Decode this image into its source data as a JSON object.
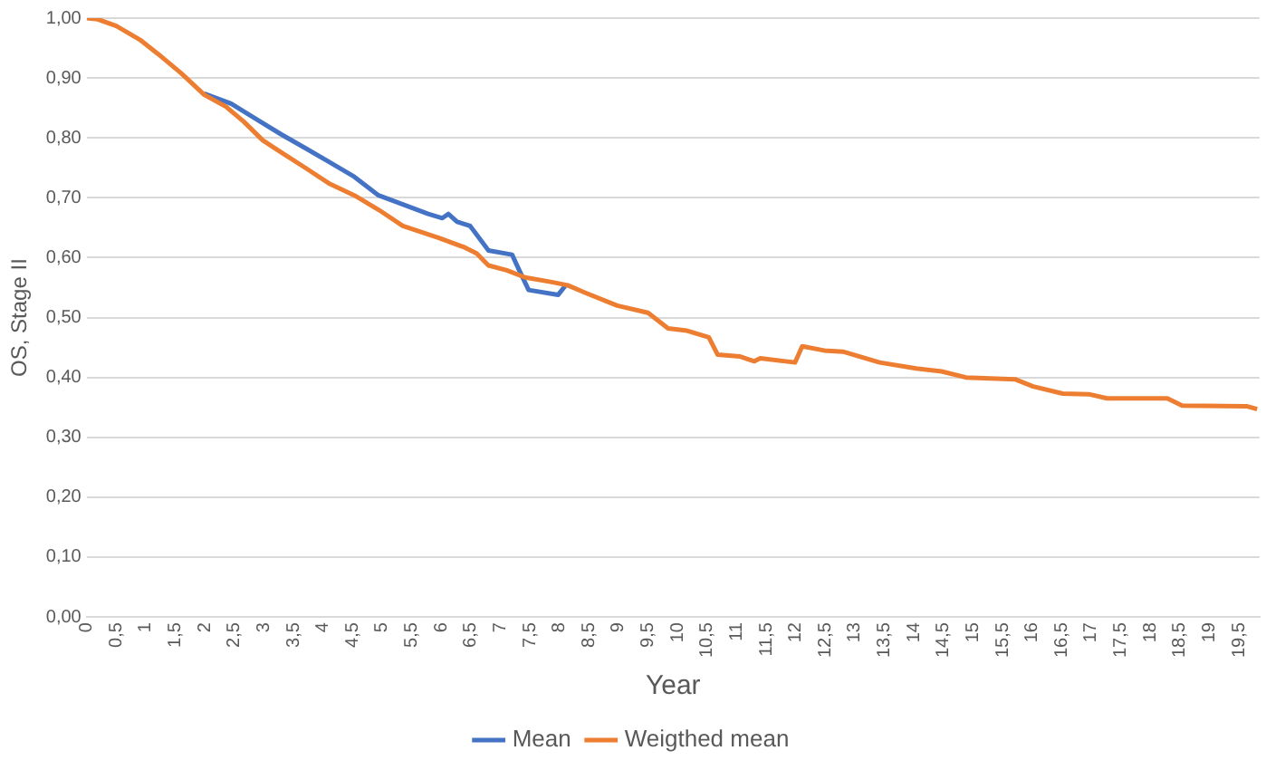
{
  "chart_data": {
    "type": "line",
    "xlabel": "Year",
    "ylabel": "OS, Stage II",
    "grid": "y",
    "legend": "bottom",
    "marker": "none",
    "xlim": [
      0,
      19.85
    ],
    "ylim": [
      0,
      1
    ],
    "xticks": [
      {
        "value": 0,
        "label": "0"
      },
      {
        "value": 0.5,
        "label": "0,5"
      },
      {
        "value": 1,
        "label": "1"
      },
      {
        "value": 1.5,
        "label": "1,5"
      },
      {
        "value": 2,
        "label": "2"
      },
      {
        "value": 2.5,
        "label": "2,5"
      },
      {
        "value": 3,
        "label": "3"
      },
      {
        "value": 3.5,
        "label": "3,5"
      },
      {
        "value": 4,
        "label": "4"
      },
      {
        "value": 4.5,
        "label": "4,5"
      },
      {
        "value": 5,
        "label": "5"
      },
      {
        "value": 5.5,
        "label": "5,5"
      },
      {
        "value": 6,
        "label": "6"
      },
      {
        "value": 6.5,
        "label": "6,5"
      },
      {
        "value": 7,
        "label": "7"
      },
      {
        "value": 7.5,
        "label": "7,5"
      },
      {
        "value": 8,
        "label": "8"
      },
      {
        "value": 8.5,
        "label": "8,5"
      },
      {
        "value": 9,
        "label": "9"
      },
      {
        "value": 9.5,
        "label": "9,5"
      },
      {
        "value": 10,
        "label": "10"
      },
      {
        "value": 10.5,
        "label": "10,5"
      },
      {
        "value": 11,
        "label": "11"
      },
      {
        "value": 11.5,
        "label": "11,5"
      },
      {
        "value": 12,
        "label": "12"
      },
      {
        "value": 12.5,
        "label": "12,5"
      },
      {
        "value": 13,
        "label": "13"
      },
      {
        "value": 13.5,
        "label": "13,5"
      },
      {
        "value": 14,
        "label": "14"
      },
      {
        "value": 14.5,
        "label": "14,5"
      },
      {
        "value": 15,
        "label": "15"
      },
      {
        "value": 15.5,
        "label": "15,5"
      },
      {
        "value": 16,
        "label": "16"
      },
      {
        "value": 16.5,
        "label": "16,5"
      },
      {
        "value": 17,
        "label": "17"
      },
      {
        "value": 17.5,
        "label": "17,5"
      },
      {
        "value": 18,
        "label": "18"
      },
      {
        "value": 18.5,
        "label": "18,5"
      },
      {
        "value": 19,
        "label": "19"
      },
      {
        "value": 19.5,
        "label": "19,5"
      }
    ],
    "yticks": [
      {
        "value": 0,
        "label": "0,00"
      },
      {
        "value": 0.1,
        "label": "0,10"
      },
      {
        "value": 0.2,
        "label": "0,20"
      },
      {
        "value": 0.3,
        "label": "0,30"
      },
      {
        "value": 0.4,
        "label": "0,40"
      },
      {
        "value": 0.5,
        "label": "0,50"
      },
      {
        "value": 0.6,
        "label": "0,60"
      },
      {
        "value": 0.7,
        "label": "0,70"
      },
      {
        "value": 0.8,
        "label": "0,80"
      },
      {
        "value": 0.9,
        "label": "0,90"
      },
      {
        "value": 1,
        "label": "1,00"
      }
    ],
    "series": [
      {
        "name": "Mean",
        "color": "#4472c4",
        "x": [
          1.99,
          2.45,
          2.86,
          3.29,
          3.7,
          4.1,
          4.53,
          4.94,
          5.35,
          5.78,
          6.02,
          6.12,
          6.27,
          6.49,
          6.8,
          7.2,
          7.33,
          7.48,
          7.98,
          8.1
        ],
        "values": [
          0.874,
          0.857,
          0.832,
          0.806,
          0.783,
          0.76,
          0.735,
          0.704,
          0.689,
          0.673,
          0.666,
          0.673,
          0.66,
          0.653,
          0.612,
          0.605,
          0.577,
          0.546,
          0.538,
          0.553
        ]
      },
      {
        "name": "Weigthed mean",
        "color": "#ed7d31",
        "x": [
          0,
          0.19,
          0.5,
          0.9,
          1.21,
          1.6,
          1.99,
          2.36,
          2.66,
          2.98,
          3.29,
          3.7,
          4.1,
          4.53,
          4.94,
          5.35,
          5.96,
          6.4,
          6.6,
          6.8,
          7.11,
          7.42,
          7.83,
          8.14,
          8.45,
          8.98,
          9.5,
          9.84,
          10.16,
          10.53,
          10.68,
          11.06,
          11.3,
          11.4,
          11.99,
          12.11,
          12.48,
          12.8,
          13.42,
          14.04,
          14.47,
          14.88,
          15.71,
          16.02,
          16.52,
          16.96,
          17.27,
          18.29,
          18.54,
          19.63,
          19.81
        ],
        "values": [
          1.0,
          0.998,
          0.987,
          0.964,
          0.94,
          0.908,
          0.872,
          0.852,
          0.827,
          0.796,
          0.776,
          0.75,
          0.724,
          0.704,
          0.68,
          0.653,
          0.633,
          0.617,
          0.607,
          0.587,
          0.579,
          0.567,
          0.56,
          0.554,
          0.541,
          0.52,
          0.508,
          0.482,
          0.478,
          0.467,
          0.438,
          0.435,
          0.427,
          0.432,
          0.425,
          0.452,
          0.445,
          0.443,
          0.425,
          0.415,
          0.41,
          0.4,
          0.397,
          0.385,
          0.373,
          0.372,
          0.365,
          0.365,
          0.353,
          0.352,
          0.347
        ]
      }
    ]
  }
}
